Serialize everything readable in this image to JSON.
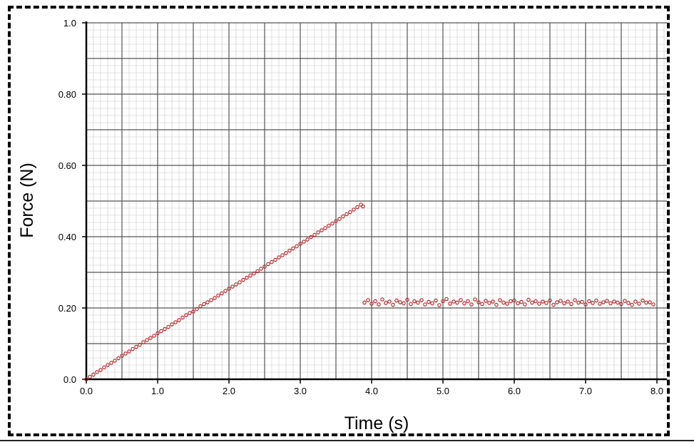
{
  "chart_data": {
    "type": "scatter",
    "xlabel": "Time (s)",
    "ylabel": "Force (N)",
    "xlim": [
      0,
      8
    ],
    "ylim": [
      0,
      1
    ],
    "x_ticks": [
      {
        "value": 0,
        "label": "0.0"
      },
      {
        "value": 1,
        "label": "1.0"
      },
      {
        "value": 2,
        "label": "2.0"
      },
      {
        "value": 3,
        "label": "3.0"
      },
      {
        "value": 4,
        "label": "4.0"
      },
      {
        "value": 5,
        "label": "5.0"
      },
      {
        "value": 6,
        "label": "6.0"
      },
      {
        "value": 7,
        "label": "7.0"
      },
      {
        "value": 8,
        "label": "8.0"
      }
    ],
    "y_ticks": [
      {
        "value": 0,
        "label": "0.0"
      },
      {
        "value": 0.2,
        "label": "0.20"
      },
      {
        "value": 0.4,
        "label": "0.40"
      },
      {
        "value": 0.6,
        "label": "0.60"
      },
      {
        "value": 0.8,
        "label": "0.80"
      },
      {
        "value": 1.0,
        "label": "1.0"
      }
    ],
    "grid": true,
    "marker_color": "#b22222",
    "series": [
      {
        "x": [
          0.0,
          0.05,
          0.1,
          0.15,
          0.2,
          0.25,
          0.3,
          0.35,
          0.4,
          0.45,
          0.5,
          0.55,
          0.6,
          0.65,
          0.7,
          0.75,
          0.8,
          0.85,
          0.9,
          0.95,
          1.0,
          1.05,
          1.1,
          1.15,
          1.2,
          1.25,
          1.3,
          1.35,
          1.4,
          1.45,
          1.5,
          1.55,
          1.6,
          1.65,
          1.7,
          1.75,
          1.8,
          1.85,
          1.9,
          1.95,
          2.0,
          2.05,
          2.1,
          2.15,
          2.2,
          2.25,
          2.3,
          2.35,
          2.4,
          2.45,
          2.5,
          2.55,
          2.6,
          2.65,
          2.7,
          2.75,
          2.8,
          2.85,
          2.9,
          2.95,
          3.0,
          3.05,
          3.1,
          3.15,
          3.2,
          3.25,
          3.3,
          3.35,
          3.4,
          3.45,
          3.5,
          3.55,
          3.6,
          3.65,
          3.7,
          3.75,
          3.8,
          3.85,
          3.88
        ],
        "y": [
          0.0,
          0.007,
          0.013,
          0.02,
          0.026,
          0.033,
          0.04,
          0.046,
          0.052,
          0.059,
          0.066,
          0.072,
          0.078,
          0.085,
          0.091,
          0.097,
          0.104,
          0.11,
          0.116,
          0.122,
          0.129,
          0.135,
          0.141,
          0.147,
          0.154,
          0.16,
          0.166,
          0.173,
          0.18,
          0.186,
          0.19,
          0.197,
          0.205,
          0.211,
          0.216,
          0.222,
          0.228,
          0.235,
          0.241,
          0.248,
          0.254,
          0.26,
          0.266,
          0.272,
          0.279,
          0.285,
          0.291,
          0.297,
          0.303,
          0.31,
          0.316,
          0.323,
          0.329,
          0.335,
          0.342,
          0.348,
          0.354,
          0.361,
          0.367,
          0.373,
          0.38,
          0.386,
          0.392,
          0.399,
          0.405,
          0.412,
          0.418,
          0.424,
          0.431,
          0.437,
          0.444,
          0.45,
          0.457,
          0.463,
          0.469,
          0.476,
          0.483,
          0.49,
          0.485
        ]
      },
      {
        "x": [
          3.9,
          3.95,
          4.0,
          4.05,
          4.1,
          4.15,
          4.2,
          4.25,
          4.3,
          4.35,
          4.4,
          4.45,
          4.5,
          4.55,
          4.6,
          4.65,
          4.7,
          4.75,
          4.8,
          4.85,
          4.9,
          4.95,
          5.0,
          5.05,
          5.1,
          5.15,
          5.2,
          5.25,
          5.3,
          5.35,
          5.4,
          5.45,
          5.5,
          5.55,
          5.6,
          5.65,
          5.7,
          5.75,
          5.8,
          5.85,
          5.9,
          5.95,
          6.0,
          6.05,
          6.1,
          6.15,
          6.2,
          6.25,
          6.3,
          6.35,
          6.4,
          6.45,
          6.5,
          6.55,
          6.6,
          6.65,
          6.7,
          6.75,
          6.8,
          6.85,
          6.9,
          6.95,
          7.0,
          7.05,
          7.1,
          7.15,
          7.2,
          7.25,
          7.3,
          7.35,
          7.4,
          7.45,
          7.5,
          7.55,
          7.6,
          7.65,
          7.7,
          7.75,
          7.8,
          7.85,
          7.9,
          7.95
        ],
        "y": [
          0.215,
          0.222,
          0.212,
          0.219,
          0.21,
          0.224,
          0.214,
          0.218,
          0.209,
          0.221,
          0.216,
          0.213,
          0.223,
          0.211,
          0.219,
          0.215,
          0.222,
          0.21,
          0.217,
          0.213,
          0.221,
          0.208,
          0.219,
          0.225,
          0.212,
          0.218,
          0.215,
          0.222,
          0.213,
          0.219,
          0.21,
          0.224,
          0.216,
          0.211,
          0.22,
          0.214,
          0.218,
          0.209,
          0.222,
          0.215,
          0.212,
          0.219,
          0.221,
          0.213,
          0.217,
          0.21,
          0.223,
          0.215,
          0.219,
          0.212,
          0.218,
          0.214,
          0.221,
          0.209,
          0.216,
          0.22,
          0.213,
          0.218,
          0.211,
          0.222,
          0.215,
          0.217,
          0.21,
          0.219,
          0.214,
          0.221,
          0.212,
          0.216,
          0.22,
          0.213,
          0.218,
          0.215,
          0.211,
          0.22,
          0.214,
          0.209,
          0.218,
          0.212,
          0.221,
          0.215,
          0.216,
          0.21
        ]
      }
    ]
  }
}
